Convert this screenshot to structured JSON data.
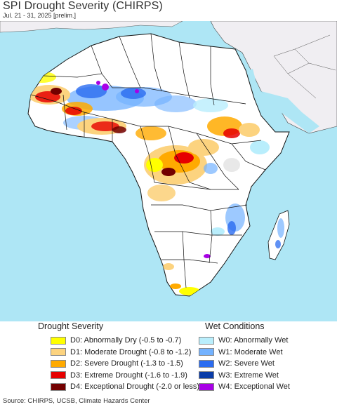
{
  "header": {
    "title": "SPI Drought Severity (CHIRPS)",
    "subtitle": "Jul. 21 - 31, 2025 [prelim.]"
  },
  "map": {
    "region": "Africa",
    "ocean_color": "#aee6f5",
    "land_color": "#ffffff",
    "outside_region_color": "#f0eef2",
    "border_color": "#111111"
  },
  "legend": {
    "drought": {
      "title": "Drought Severity",
      "items": [
        {
          "label": "D0: Abnormally Dry (-0.5 to -0.7)",
          "color": "#ffff00"
        },
        {
          "label": "D1: Moderate Drought (-0.8 to -1.2)",
          "color": "#fcd37f"
        },
        {
          "label": "D2: Severe Drought (-1.3 to -1.5)",
          "color": "#ffaa00"
        },
        {
          "label": "D3: Extreme Drought (-1.6 to -1.9)",
          "color": "#e60000"
        },
        {
          "label": "D4: Exceptional Drought (-2.0 or less)",
          "color": "#730000"
        }
      ]
    },
    "wet": {
      "title": "Wet Conditions",
      "items": [
        {
          "label": "W0: Abnormally Wet",
          "color": "#b9eefc"
        },
        {
          "label": "W1: Moderate Wet",
          "color": "#73b2ff"
        },
        {
          "label": "W2: Severe Wet",
          "color": "#2b6cf0"
        },
        {
          "label": "W3: Extreme Wet",
          "color": "#0a3ca8"
        },
        {
          "label": "W4: Exceptional Wet",
          "color": "#a800e6"
        }
      ]
    }
  },
  "footer": {
    "source": "Source: CHIRPS, UCSB, Climate Hazards Center"
  }
}
